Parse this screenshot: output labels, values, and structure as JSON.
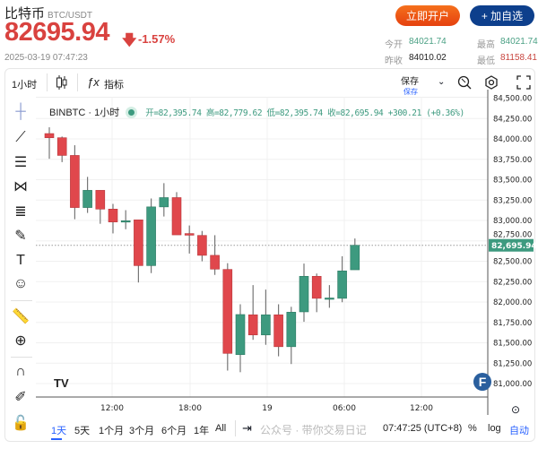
{
  "header": {
    "title": "比特币",
    "pair": "BTC/USDT",
    "price": "82695.94",
    "change": "-1.57%",
    "datetime": "2025-03-19 07:47:23",
    "open_account": "立即开户",
    "add_watch": "+ 加自选",
    "stats": {
      "open_label": "今开",
      "open": "84021.74",
      "high_label": "最高",
      "high": "84021.74",
      "prev_close_label": "昨收",
      "prev_close": "84010.02",
      "low_label": "最低",
      "low": "81158.41"
    }
  },
  "toolbar": {
    "interval": "1小时",
    "indicators": "指标",
    "save": "保存",
    "save_sub": "保存"
  },
  "legend": {
    "symbol": "BINBTC · 1小时",
    "ohlc": "开=82,395.74 高=82,779.62 低=82,395.74 收=82,695.94 +300.21 (+0.36%)"
  },
  "colors": {
    "up": "#3d9a7f",
    "down": "#e0474c",
    "accent": "#2962ff"
  },
  "left_tools": [
    "crosshair-icon",
    "trend-line-icon",
    "parallel-lines-icon",
    "pattern-icon",
    "fib-icon",
    "brush-icon",
    "text-icon",
    "emoji-icon",
    "ruler-icon",
    "zoom-in-icon",
    "magnet-icon",
    "lock-drawing-icon",
    "unlock-icon"
  ],
  "bottom": {
    "ranges": [
      "1天",
      "5天",
      "1个月",
      "3个月",
      "6个月",
      "1年",
      "All"
    ],
    "active_range": "1天",
    "clock": "07:47:25 (UTC+8)",
    "percent": "%",
    "log": "log",
    "auto": "自动",
    "watermark": "公众号 · 带你交易日记"
  },
  "chart_data": {
    "type": "candlestick",
    "x_ticks": [
      "12:00",
      "18:00",
      "19",
      "06:00",
      "12:00"
    ],
    "y_ticks": [
      84500,
      84250,
      84000,
      83750,
      83500,
      83250,
      83000,
      82750,
      82500,
      82250,
      82000,
      81750,
      81500,
      81250,
      81000
    ],
    "ylim": [
      80980,
      84520
    ],
    "last_price": "82,695.94",
    "grid": true,
    "interval": "1h",
    "time_range": [
      "03-18 07:00",
      "03-19 07:00"
    ],
    "candles": [
      {
        "t": "03-18 07:00",
        "o": 84066,
        "h": 84143,
        "l": 83757,
        "c": 84015
      },
      {
        "t": "03-18 08:00",
        "o": 84015,
        "h": 84030,
        "l": 83716,
        "c": 83798
      },
      {
        "t": "03-18 09:00",
        "o": 83798,
        "h": 83923,
        "l": 83016,
        "c": 83159
      },
      {
        "t": "03-18 10:00",
        "o": 83159,
        "h": 83535,
        "l": 83093,
        "c": 83370
      },
      {
        "t": "03-18 11:00",
        "o": 83370,
        "h": 83370,
        "l": 82960,
        "c": 83140
      },
      {
        "t": "03-18 12:00",
        "o": 83140,
        "h": 83204,
        "l": 82842,
        "c": 82982
      },
      {
        "t": "03-18 13:00",
        "o": 82982,
        "h": 83127,
        "l": 82893,
        "c": 82997
      },
      {
        "t": "03-18 14:00",
        "o": 83008,
        "h": 83008,
        "l": 82240,
        "c": 82447
      },
      {
        "t": "03-18 15:00",
        "o": 82447,
        "h": 83270,
        "l": 82355,
        "c": 83167
      },
      {
        "t": "03-18 16:00",
        "o": 83167,
        "h": 83458,
        "l": 83049,
        "c": 83281
      },
      {
        "t": "03-18 17:00",
        "o": 83281,
        "h": 83348,
        "l": 82824,
        "c": 82824
      },
      {
        "t": "03-18 18:00",
        "o": 82840,
        "h": 82939,
        "l": 82595,
        "c": 82820
      },
      {
        "t": "03-18 19:00",
        "o": 82817,
        "h": 82872,
        "l": 82500,
        "c": 82573
      },
      {
        "t": "03-18 20:00",
        "o": 82573,
        "h": 82820,
        "l": 82333,
        "c": 82404
      },
      {
        "t": "03-18 21:00",
        "o": 82400,
        "h": 82477,
        "l": 81160,
        "c": 81371
      },
      {
        "t": "03-18 22:00",
        "o": 81356,
        "h": 81973,
        "l": 81140,
        "c": 81847
      },
      {
        "t": "03-18 23:00",
        "o": 81844,
        "h": 82208,
        "l": 81537,
        "c": 81597
      },
      {
        "t": "03-19 00:00",
        "o": 81597,
        "h": 82153,
        "l": 81476,
        "c": 81844
      },
      {
        "t": "03-19 01:00",
        "o": 81844,
        "h": 81973,
        "l": 81335,
        "c": 81453
      },
      {
        "t": "03-19 02:00",
        "o": 81453,
        "h": 81942,
        "l": 81240,
        "c": 81876
      },
      {
        "t": "03-19 03:00",
        "o": 81880,
        "h": 82472,
        "l": 81758,
        "c": 82316
      },
      {
        "t": "03-19 04:00",
        "o": 82316,
        "h": 82350,
        "l": 81876,
        "c": 82046
      },
      {
        "t": "03-19 05:00",
        "o": 82046,
        "h": 82208,
        "l": 81930,
        "c": 82050
      },
      {
        "t": "03-19 06:00",
        "o": 82046,
        "h": 82562,
        "l": 81998,
        "c": 82382
      },
      {
        "t": "03-19 07:00",
        "o": 82395.74,
        "h": 82779.62,
        "l": 82395.74,
        "c": 82695.94
      }
    ]
  }
}
